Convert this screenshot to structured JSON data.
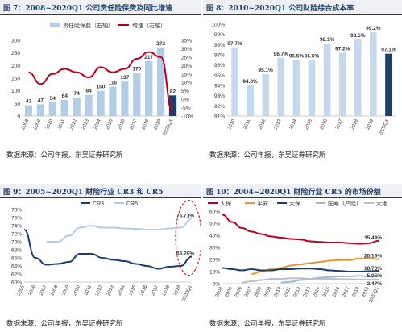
{
  "panels": [
    {
      "title": "图 7：2008~2020Q1 公司责任险保费及同比增速",
      "source": "数据来源：公司年报，东吴证券研究所"
    },
    {
      "title": "图 8：2010~2020Q1 公司财险综合成本率",
      "source": "数据来源：公司年报，东吴证券研究所"
    },
    {
      "title": "图 9：2005~2020Q1 财险行业 CR3 和 CR5",
      "source": "数据来源：公司年报，东吴证券研究所"
    },
    {
      "title": "图 10：2004~2020Q1 财险行业 CR5 的市场份额",
      "source": "数据来源：公司年报，东吴证券研究所"
    }
  ],
  "chart_data": [
    {
      "type": "bar",
      "categories": [
        "2008",
        "2009",
        "2010",
        "2011",
        "2012",
        "2013",
        "2014",
        "2015",
        "2016",
        "2017",
        "2018",
        "2019",
        "2020Q1"
      ],
      "series": [
        {
          "name": "责任险保费（右轴）",
          "kind": "bar",
          "axis": "left",
          "color": "#b4cde6",
          "values": [
            43,
            47,
            54,
            64,
            74,
            84,
            100,
            116,
            137,
            170,
            217,
            272,
            82
          ],
          "labels": [
            "43",
            "47",
            "54",
            "64",
            "74",
            "84",
            "100",
            "116",
            "137",
            "170",
            "217",
            "272",
            "82"
          ]
        },
        {
          "name": "增速（右轴）",
          "kind": "line",
          "axis": "right",
          "color": "#b8001e",
          "values": [
            16,
            9,
            15,
            18,
            16,
            13,
            19,
            16,
            18,
            24,
            28,
            25,
            -8
          ]
        }
      ],
      "ylim": [
        0,
        300
      ],
      "yticks": [
        0,
        50,
        100,
        150,
        200,
        250,
        300
      ],
      "y2lim": [
        -10,
        35
      ],
      "y2ticks": [
        "-10%",
        "-5%",
        "0%",
        "5%",
        "10%",
        "15%",
        "20%",
        "25%",
        "30%",
        "35%"
      ],
      "highlight_last_bar": "#1f3d6b"
    },
    {
      "type": "bar",
      "categories": [
        "2010",
        "2011",
        "2012",
        "2013",
        "2014",
        "2015",
        "2016",
        "2017",
        "2018",
        "2019",
        "2020Q1"
      ],
      "values": [
        97.7,
        94.0,
        95.1,
        96.7,
        96.5,
        96.5,
        98.1,
        97.2,
        98.5,
        99.2,
        97.1
      ],
      "labels": [
        "97.7%",
        "94.0%",
        "95.1%",
        "96.7%",
        "96.5%",
        "96.5%",
        "98.1%",
        "97.2%",
        "98.5%",
        "99.2%",
        "97.1%"
      ],
      "ylim": [
        91,
        100
      ],
      "yticks": [
        "91%",
        "92%",
        "93%",
        "94%",
        "95%",
        "96%",
        "97%",
        "98%",
        "99%",
        "100%"
      ],
      "bar_color": "#c5d9ee",
      "last_color": "#1f3d6b"
    },
    {
      "type": "line",
      "categories": [
        "2005",
        "2006",
        "2007",
        "2008",
        "2009",
        "2010",
        "2011",
        "2012",
        "2013",
        "2014",
        "2015",
        "2016",
        "2017",
        "2018",
        "2019",
        "2020Q1"
      ],
      "series": [
        {
          "name": "CR3",
          "color": "#1f3d6b",
          "values": [
            73,
            66,
            64.3,
            64.5,
            65,
            67,
            67,
            66,
            65.5,
            65.2,
            64.5,
            64,
            63.3,
            63.8,
            64,
            66.3
          ]
        },
        {
          "name": "CR5",
          "color": "#b4cde6",
          "values": [
            null,
            null,
            70,
            70,
            71.5,
            73.5,
            74,
            73.5,
            73.5,
            73.3,
            73.2,
            73,
            73,
            73.3,
            73.5,
            75.7
          ]
        }
      ],
      "ylim": [
        60,
        78
      ],
      "yticks": [
        "60%",
        "62%",
        "64%",
        "66%",
        "68%",
        "70%",
        "72%",
        "74%",
        "76%",
        "78%"
      ],
      "annotations": [
        "75.71%",
        "66.29%"
      ]
    },
    {
      "type": "line",
      "categories": [
        "2004",
        "2005",
        "2006",
        "2007",
        "2008",
        "2009",
        "2010",
        "2011",
        "2012",
        "2013",
        "2014",
        "2015",
        "2016",
        "2017",
        "2018",
        "2019",
        "2020Q1"
      ],
      "series": [
        {
          "name": "人保",
          "color": "#b8001e",
          "values": [
            57,
            51,
            46,
            43,
            41,
            39,
            38,
            37,
            36.5,
            35,
            34.5,
            34,
            34,
            33.5,
            33,
            33.4,
            35.4
          ]
        },
        {
          "name": "平安",
          "color": "#e8953a",
          "values": [
            null,
            null,
            null,
            8,
            10,
            12,
            13,
            15,
            16,
            17,
            18,
            19,
            19.5,
            19.5,
            20.8,
            21,
            20.2
          ]
        },
        {
          "name": "太保",
          "color": "#1f3d6b",
          "values": [
            13,
            12,
            11,
            12,
            11,
            11,
            12,
            12,
            12.5,
            12.5,
            12,
            11,
            10.5,
            10,
            10,
            10.3,
            10.7
          ]
        },
        {
          "name": "国寿（产险）",
          "color": "#9ab8d8",
          "values": [
            null,
            null,
            null,
            null,
            null,
            null,
            1,
            1.5,
            3,
            4,
            5,
            5.5,
            6,
            6,
            6.5,
            5.8,
            6.0
          ]
        },
        {
          "name": "大地",
          "color": "#bfbfbf",
          "values": [
            null,
            null,
            1,
            2,
            3,
            4,
            4,
            4.5,
            4.5,
            4,
            4,
            4,
            3.8,
            3.7,
            3.5,
            3.4,
            3.5
          ]
        }
      ],
      "ylim": [
        0,
        60
      ],
      "yticks": [
        "0%",
        "10%",
        "20%",
        "30%",
        "40%",
        "50%",
        "60%"
      ],
      "annotations": [
        "35.44%",
        "20.16%",
        "10.70%",
        "5.95%",
        "3.47%"
      ]
    }
  ]
}
